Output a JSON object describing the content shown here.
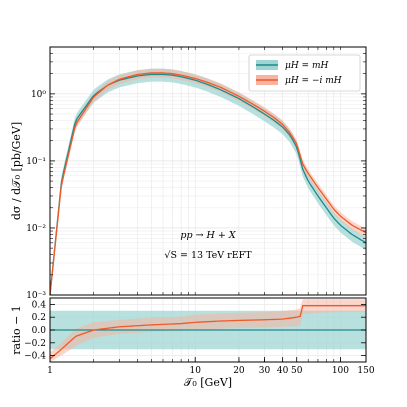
{
  "chart_data": [
    {
      "type": "line",
      "panel": "main",
      "xscale": "log",
      "yscale": "log",
      "xlim": [
        1,
        150
      ],
      "ylim": [
        0.001,
        5
      ],
      "ylabel": "dσ / d𝒯₀  [pb/GeV]",
      "ytick_labels": [
        "10⁻³",
        "10⁻²",
        "10⁻¹",
        "10⁰"
      ],
      "ytick_values": [
        0.001,
        0.01,
        0.1,
        1
      ],
      "annotation": [
        "pp → H + X",
        "√S = 13 TeV   rEFT"
      ],
      "legend_position": "top-right",
      "grid": true,
      "series": [
        {
          "name": "μH = mH",
          "color": "#1f8a8a",
          "band_color": "#9fd6d4",
          "x": [
            1.0,
            1.2,
            1.5,
            2,
            2.5,
            3,
            4,
            5,
            6,
            7,
            8,
            10,
            12,
            15,
            20,
            25,
            30,
            35,
            40,
            45,
            50,
            52,
            55,
            60,
            70,
            80,
            90,
            100,
            120,
            150
          ],
          "y": [
            0.001,
            0.05,
            0.4,
            0.95,
            1.35,
            1.6,
            1.85,
            1.95,
            1.95,
            1.9,
            1.8,
            1.6,
            1.4,
            1.15,
            0.85,
            0.64,
            0.5,
            0.4,
            0.32,
            0.24,
            0.16,
            0.12,
            0.075,
            0.05,
            0.03,
            0.02,
            0.014,
            0.011,
            0.008,
            0.006
          ],
          "band_rel": 0.22
        },
        {
          "name": "μH = −i mH",
          "color": "#f05a28",
          "band_color": "#f8b4a0",
          "x": [
            1.0,
            1.2,
            1.5,
            2,
            2.5,
            3,
            4,
            5,
            6,
            7,
            8,
            10,
            12,
            15,
            20,
            25,
            30,
            35,
            40,
            45,
            50,
            52,
            55,
            60,
            70,
            80,
            90,
            100,
            120,
            150
          ],
          "y": [
            0.001,
            0.045,
            0.35,
            0.9,
            1.35,
            1.65,
            1.95,
            2.05,
            2.05,
            2.0,
            1.9,
            1.7,
            1.5,
            1.25,
            0.92,
            0.7,
            0.55,
            0.44,
            0.35,
            0.26,
            0.18,
            0.135,
            0.09,
            0.065,
            0.04,
            0.027,
            0.019,
            0.015,
            0.011,
            0.0085
          ],
          "band_rel": 0.15
        }
      ]
    },
    {
      "type": "line",
      "panel": "ratio",
      "xscale": "log",
      "xlim": [
        1,
        150
      ],
      "ylim": [
        -0.5,
        0.5
      ],
      "xlabel": "𝒯₀   [GeV]",
      "ylabel": "ratio − 1",
      "xtick_labels": [
        "1",
        "10",
        "20",
        "30",
        "40",
        "50",
        "100",
        "150"
      ],
      "xtick_values": [
        1,
        10,
        20,
        30,
        40,
        50,
        100,
        150
      ],
      "ytick_labels": [
        "0.4",
        "0.2",
        "0.0",
        "−0.2",
        "−0.4"
      ],
      "ytick_values": [
        0.4,
        0.2,
        0.0,
        -0.2,
        -0.4
      ],
      "series": [
        {
          "name": "μH = mH",
          "color": "#1f8a8a",
          "band_color": "#9fd6d4",
          "x": [
            1,
            150
          ],
          "y": [
            0.0,
            0.0
          ],
          "band_lo": [
            -0.3,
            -0.3
          ],
          "band_hi": [
            0.3,
            0.3
          ]
        },
        {
          "name": "μH = −i mH",
          "color": "#f05a28",
          "band_color": "#f8b4a0",
          "x": [
            1.0,
            1.2,
            1.5,
            2,
            3,
            5,
            8,
            10,
            15,
            20,
            30,
            40,
            50,
            54,
            55,
            70,
            100,
            150
          ],
          "y": [
            -0.45,
            -0.3,
            -0.1,
            0.0,
            0.05,
            0.08,
            0.1,
            0.12,
            0.14,
            0.15,
            0.16,
            0.17,
            0.2,
            0.22,
            0.38,
            0.38,
            0.38,
            0.38
          ],
          "band_lo": [
            -0.5,
            -0.4,
            -0.25,
            -0.12,
            -0.06,
            -0.03,
            -0.01,
            0.0,
            0.02,
            0.03,
            0.04,
            0.05,
            0.06,
            0.07,
            0.25,
            0.27,
            0.28,
            0.28
          ],
          "band_hi": [
            -0.35,
            -0.2,
            0.02,
            0.12,
            0.16,
            0.19,
            0.21,
            0.24,
            0.26,
            0.27,
            0.28,
            0.3,
            0.32,
            0.35,
            0.48,
            0.48,
            0.48,
            0.48
          ]
        }
      ]
    }
  ]
}
